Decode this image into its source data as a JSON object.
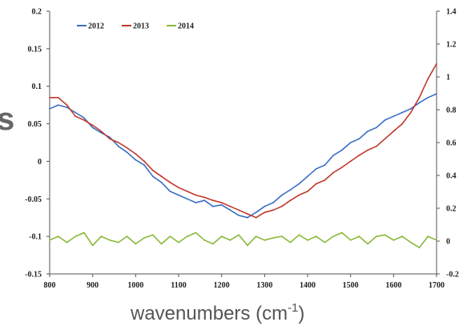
{
  "chart_data": {
    "type": "line",
    "title": "",
    "xlabel": "wavenumbers (cm",
    "xlabel_sup": "-1",
    "xlabel_close": ")",
    "left_fragment": "s",
    "xlim": [
      800,
      1700
    ],
    "x_ticks": [
      "800",
      "900",
      "1000",
      "1100",
      "1200",
      "1300",
      "1400",
      "1500",
      "1600",
      "1700"
    ],
    "ylim_left": [
      -0.15,
      0.2
    ],
    "y_ticks_left": [
      "0.2",
      "0.15",
      "0.1",
      "0.05",
      "0",
      "-0.05",
      "-0.1",
      "-0.15"
    ],
    "ylim_right": [
      -0.2,
      1.4
    ],
    "y_ticks_right": [
      "1.4",
      "1.2",
      "1",
      "0.8",
      "0.6",
      "0.4",
      "0.2",
      "0",
      "-0.2"
    ],
    "grid": false,
    "legend_position": "top-left",
    "series": [
      {
        "name": "2012",
        "color": "#3a6fc4",
        "axis": "left",
        "x": [
          800,
          820,
          840,
          860,
          880,
          900,
          920,
          940,
          960,
          980,
          1000,
          1020,
          1040,
          1060,
          1080,
          1100,
          1120,
          1140,
          1160,
          1180,
          1200,
          1220,
          1240,
          1260,
          1280,
          1300,
          1320,
          1340,
          1360,
          1380,
          1400,
          1420,
          1440,
          1460,
          1480,
          1500,
          1520,
          1540,
          1560,
          1580,
          1600,
          1620,
          1640,
          1660,
          1680,
          1700
        ],
        "y": [
          0.07,
          0.075,
          0.072,
          0.065,
          0.058,
          0.045,
          0.038,
          0.032,
          0.02,
          0.012,
          0.002,
          -0.005,
          -0.02,
          -0.028,
          -0.04,
          -0.045,
          -0.05,
          -0.055,
          -0.052,
          -0.06,
          -0.058,
          -0.065,
          -0.072,
          -0.075,
          -0.068,
          -0.06,
          -0.055,
          -0.045,
          -0.038,
          -0.03,
          -0.02,
          -0.01,
          -0.005,
          0.008,
          0.015,
          0.025,
          0.03,
          0.04,
          0.045,
          0.055,
          0.06,
          0.065,
          0.07,
          0.078,
          0.085,
          0.09
        ]
      },
      {
        "name": "2013",
        "color": "#c0392b",
        "axis": "left",
        "x": [
          800,
          820,
          840,
          860,
          880,
          900,
          920,
          940,
          960,
          980,
          1000,
          1020,
          1040,
          1060,
          1080,
          1100,
          1120,
          1140,
          1160,
          1180,
          1200,
          1220,
          1240,
          1260,
          1280,
          1300,
          1320,
          1340,
          1360,
          1380,
          1400,
          1420,
          1440,
          1460,
          1480,
          1500,
          1520,
          1540,
          1560,
          1580,
          1600,
          1620,
          1640,
          1660,
          1680,
          1700
        ],
        "y": [
          0.085,
          0.085,
          0.075,
          0.06,
          0.055,
          0.048,
          0.04,
          0.03,
          0.025,
          0.018,
          0.01,
          0.0,
          -0.012,
          -0.02,
          -0.028,
          -0.035,
          -0.04,
          -0.045,
          -0.048,
          -0.052,
          -0.055,
          -0.06,
          -0.065,
          -0.07,
          -0.075,
          -0.068,
          -0.065,
          -0.06,
          -0.052,
          -0.045,
          -0.04,
          -0.03,
          -0.025,
          -0.015,
          -0.008,
          0.0,
          0.008,
          0.015,
          0.02,
          0.03,
          0.04,
          0.05,
          0.065,
          0.085,
          0.11,
          0.13
        ]
      },
      {
        "name": "2014",
        "color": "#8ab83a",
        "axis": "left",
        "x": [
          800,
          820,
          840,
          860,
          880,
          900,
          920,
          940,
          960,
          980,
          1000,
          1020,
          1040,
          1060,
          1080,
          1100,
          1120,
          1140,
          1160,
          1180,
          1200,
          1220,
          1240,
          1260,
          1280,
          1300,
          1320,
          1340,
          1360,
          1380,
          1400,
          1420,
          1440,
          1460,
          1480,
          1500,
          1520,
          1540,
          1560,
          1580,
          1600,
          1620,
          1640,
          1660,
          1680,
          1700
        ],
        "y": [
          -0.105,
          -0.1,
          -0.108,
          -0.1,
          -0.095,
          -0.112,
          -0.1,
          -0.105,
          -0.108,
          -0.1,
          -0.11,
          -0.102,
          -0.098,
          -0.11,
          -0.1,
          -0.108,
          -0.1,
          -0.095,
          -0.105,
          -0.11,
          -0.1,
          -0.105,
          -0.098,
          -0.112,
          -0.1,
          -0.105,
          -0.102,
          -0.1,
          -0.108,
          -0.098,
          -0.105,
          -0.1,
          -0.108,
          -0.1,
          -0.095,
          -0.105,
          -0.1,
          -0.11,
          -0.1,
          -0.098,
          -0.105,
          -0.1,
          -0.108,
          -0.115,
          -0.1,
          -0.105
        ]
      }
    ]
  }
}
